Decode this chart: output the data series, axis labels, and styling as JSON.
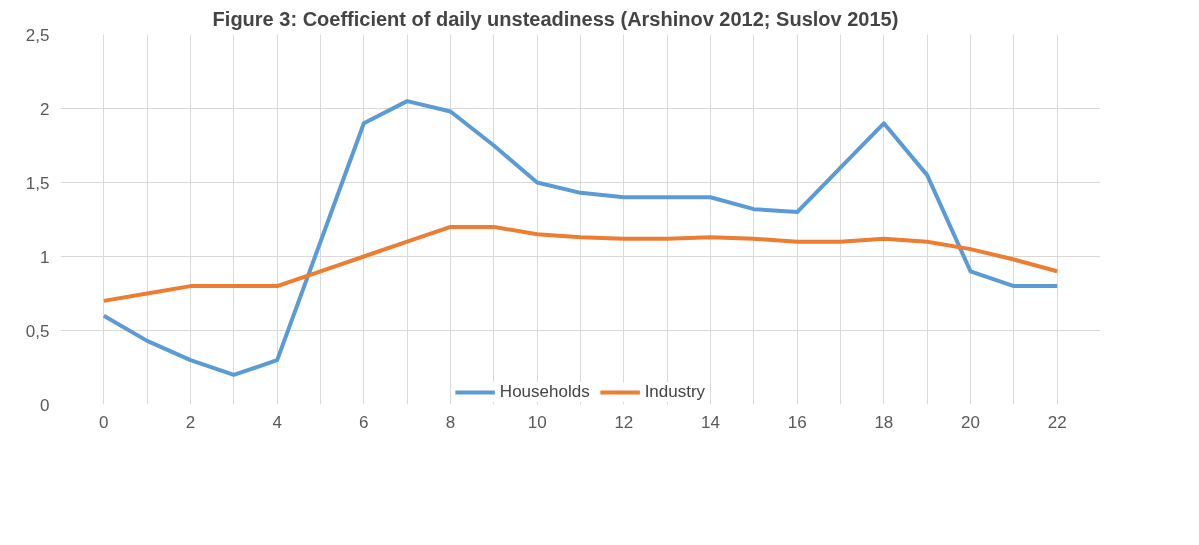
{
  "chart_data": {
    "type": "line",
    "title": "Figure 3:          Coefficient of daily unsteadiness (Arshinov 2012; Suslov 2015)",
    "x": [
      0,
      1,
      2,
      3,
      4,
      5,
      6,
      7,
      8,
      9,
      10,
      11,
      12,
      13,
      14,
      15,
      16,
      17,
      18,
      19,
      20,
      21,
      22
    ],
    "series": [
      {
        "name": "Households",
        "color": "#5b9bd5",
        "values": [
          0.6,
          0.43,
          0.3,
          0.2,
          0.3,
          1.1,
          1.9,
          2.05,
          1.98,
          1.75,
          1.5,
          1.43,
          1.4,
          1.4,
          1.4,
          1.32,
          1.3,
          1.6,
          1.9,
          1.55,
          0.9,
          0.8,
          0.8
        ]
      },
      {
        "name": "Industry",
        "color": "#ed7d31",
        "values": [
          0.7,
          0.75,
          0.8,
          0.8,
          0.8,
          0.9,
          1.0,
          1.1,
          1.2,
          1.2,
          1.15,
          1.13,
          1.12,
          1.12,
          1.13,
          1.12,
          1.1,
          1.1,
          1.12,
          1.1,
          1.05,
          0.98,
          0.9
        ]
      }
    ],
    "xlim": [
      -1,
      23
    ],
    "xticks": [
      0,
      {
        "value": 1,
        "label": null
      },
      2,
      {
        "value": 3,
        "label": null
      },
      4,
      {
        "value": 5,
        "label": null
      },
      6,
      {
        "value": 7,
        "label": null
      },
      8,
      {
        "value": 9,
        "label": null
      },
      10,
      {
        "value": 11,
        "label": null
      },
      12,
      {
        "value": 13,
        "label": null
      },
      14,
      {
        "value": 15,
        "label": null
      },
      16,
      {
        "value": 17,
        "label": null
      },
      18,
      {
        "value": 19,
        "label": null
      },
      20,
      {
        "value": 21,
        "label": null
      },
      22
    ],
    "ylim": [
      0,
      2.5
    ],
    "yticks": [
      0,
      {
        "value": 0.5,
        "label": "0,5"
      },
      1,
      {
        "value": 1.5,
        "label": "1,5"
      },
      2,
      {
        "value": 2.5,
        "label": "2,5"
      }
    ],
    "grid": true,
    "legend": "bottom",
    "marker": "none",
    "line_style": "solid"
  }
}
